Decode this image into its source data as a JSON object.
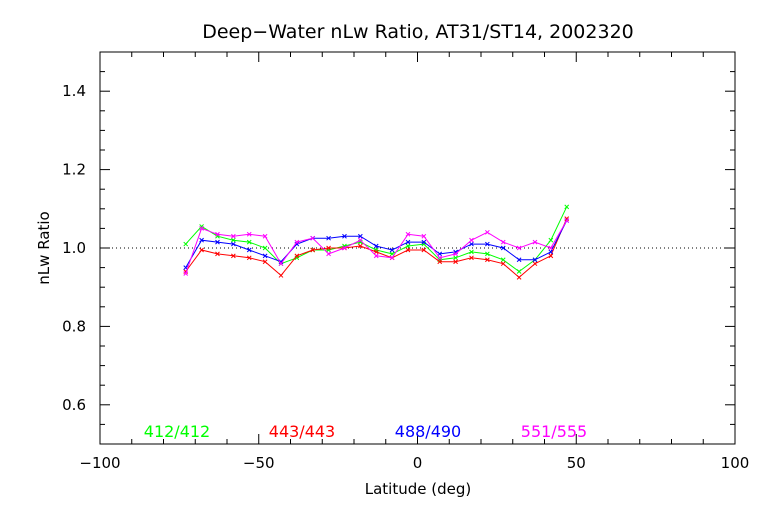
{
  "chart_data": {
    "type": "line",
    "title": "Deep−Water nLw Ratio, AT31/ST14, 2002320",
    "xlabel": "Latitude (deg)",
    "ylabel": "nLw Ratio",
    "xlim": [
      -100,
      100
    ],
    "ylim": [
      0.5,
      1.5
    ],
    "xticks": [
      -100,
      -50,
      0,
      50,
      100
    ],
    "xtick_labels": [
      "−100",
      "−50",
      "0",
      "50",
      "100"
    ],
    "yticks": [
      0.6,
      0.8,
      1.0,
      1.2,
      1.4
    ],
    "ytick_labels": [
      "0.6",
      "0.8",
      "1.0",
      "1.2",
      "1.4"
    ],
    "reference_line": 1.0,
    "grid": false,
    "legend_placement": "bottom, inside plot",
    "x": [
      -73,
      -68,
      -63,
      -58,
      -53,
      -48,
      -43,
      -38,
      -33,
      -28,
      -23,
      -18,
      -13,
      -8,
      -3,
      2,
      7,
      12,
      17,
      22,
      27,
      32,
      37,
      42,
      47
    ],
    "series": [
      {
        "name": "412/412",
        "color": "#00ff00",
        "values": [
          1.01,
          1.055,
          1.03,
          1.02,
          1.015,
          1.0,
          0.96,
          0.975,
          0.995,
          0.995,
          1.005,
          1.015,
          0.995,
          0.985,
          1.005,
          1.01,
          0.97,
          0.975,
          0.99,
          0.985,
          0.97,
          0.94,
          0.97,
          1.02,
          1.105
        ]
      },
      {
        "name": "443/443",
        "color": "#ff0000",
        "values": [
          0.94,
          0.995,
          0.985,
          0.98,
          0.975,
          0.965,
          0.93,
          0.98,
          0.995,
          1.0,
          1.0,
          1.005,
          0.99,
          0.975,
          0.995,
          0.995,
          0.965,
          0.965,
          0.975,
          0.97,
          0.96,
          0.925,
          0.96,
          0.98,
          1.075
        ]
      },
      {
        "name": "488/490",
        "color": "#0000ff",
        "values": [
          0.95,
          1.02,
          1.015,
          1.01,
          0.995,
          0.98,
          0.965,
          1.01,
          1.025,
          1.025,
          1.03,
          1.03,
          1.005,
          0.995,
          1.015,
          1.015,
          0.985,
          0.99,
          1.01,
          1.01,
          1.0,
          0.97,
          0.97,
          0.99,
          1.07
        ]
      },
      {
        "name": "551/555",
        "color": "#ff00ff",
        "values": [
          0.935,
          1.05,
          1.035,
          1.03,
          1.035,
          1.03,
          0.96,
          1.015,
          1.025,
          0.985,
          1.0,
          1.02,
          0.98,
          0.975,
          1.035,
          1.03,
          0.975,
          0.985,
          1.02,
          1.04,
          1.015,
          1.0,
          1.015,
          1.0,
          1.07
        ]
      }
    ]
  }
}
